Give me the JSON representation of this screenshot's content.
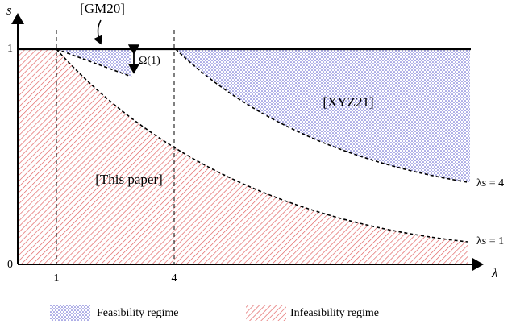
{
  "axes": {
    "y_label": "s",
    "x_label": "λ",
    "x_ticks": [
      "1",
      "4"
    ],
    "y_ticks": [
      "0",
      "1"
    ]
  },
  "annotations": {
    "gm20": "[GM20]",
    "omega": "Ω(1)",
    "xyz21": "[XYZ21]",
    "this_paper": "[This paper]",
    "curve_top": "λs = 4",
    "curve_bottom": "λs = 1"
  },
  "legend": [
    "Feasibility regime",
    "Infeasibility regime"
  ]
}
